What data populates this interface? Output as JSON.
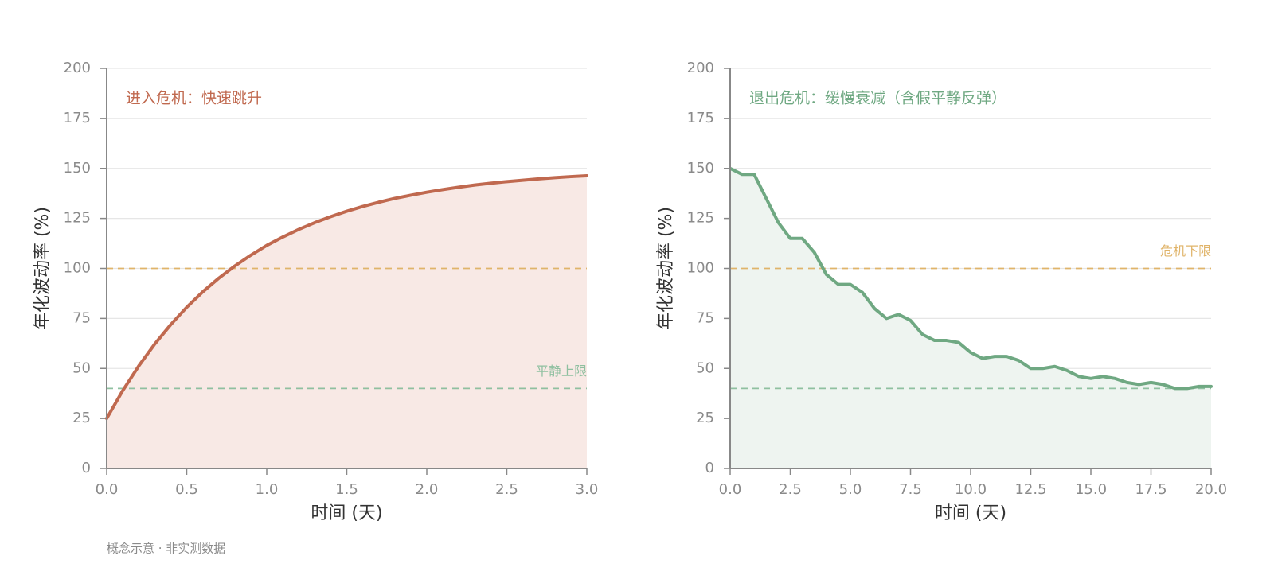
{
  "chart_data": [
    {
      "type": "area",
      "annotation": "进入危机：快速跳升",
      "xlabel": "时间 (天)",
      "ylabel": "年化波动率 (%)",
      "x": [
        0,
        0.1,
        0.2,
        0.3,
        0.4,
        0.5,
        0.6,
        0.7,
        0.8,
        0.9,
        1.0,
        1.1,
        1.2,
        1.3,
        1.4,
        1.5,
        1.6,
        1.7,
        1.8,
        1.9,
        2.0,
        2.1,
        2.2,
        2.3,
        2.4,
        2.5,
        2.6,
        2.7,
        2.8,
        2.9,
        3.0
      ],
      "values": [
        25,
        38.9,
        51.2,
        62.2,
        71.9,
        80.6,
        88.3,
        95.1,
        101.2,
        106.6,
        111.5,
        115.7,
        119.5,
        122.9,
        125.9,
        128.6,
        131.0,
        133.1,
        135.0,
        136.6,
        138.1,
        139.4,
        140.6,
        141.7,
        142.6,
        143.4,
        144.1,
        144.8,
        145.4,
        145.9,
        146.3
      ],
      "color": "#c0694f",
      "fill_color": "#f8e9e5",
      "xlim": [
        0,
        3
      ],
      "ylim": [
        0,
        200
      ],
      "xticks": [
        {
          "value": 0,
          "label": "0.0"
        },
        0.5,
        {
          "value": 1,
          "label": "1.0"
        },
        1.5,
        {
          "value": 2,
          "label": "2.0"
        },
        2.5,
        {
          "value": 3,
          "label": "3.0"
        }
      ],
      "yticks": [
        0,
        25,
        50,
        75,
        100,
        125,
        150,
        175,
        200
      ],
      "grid": true,
      "hlines": [
        {
          "value": 100,
          "color": "#e0b46a"
        },
        {
          "value": 40,
          "color": "#8fc0a0",
          "label": "平静上限"
        }
      ]
    },
    {
      "type": "area",
      "annotation": "退出危机：缓慢衰减（含假平静反弹）",
      "xlabel": "时间 (天)",
      "ylabel": "年化波动率 (%)",
      "x": [
        0,
        0.5,
        1.0,
        1.5,
        2.0,
        2.5,
        3.0,
        3.5,
        4.0,
        4.5,
        5.0,
        5.5,
        6.0,
        6.5,
        7.0,
        7.5,
        8.0,
        8.5,
        9.0,
        9.5,
        10.0,
        10.5,
        11.0,
        11.5,
        12.0,
        12.5,
        13.0,
        13.5,
        14.0,
        14.5,
        15.0,
        15.5,
        16.0,
        16.5,
        17.0,
        17.5,
        18.0,
        18.5,
        19.0,
        19.5,
        20.0
      ],
      "values": [
        150,
        147,
        147,
        135,
        123,
        115,
        115,
        108,
        97,
        92,
        92,
        88,
        80,
        75,
        77,
        74,
        67,
        64,
        64,
        63,
        58,
        55,
        56,
        56,
        54,
        50,
        50,
        51,
        49,
        46,
        45,
        46,
        45,
        43,
        42,
        43,
        42,
        40,
        40,
        41,
        41
      ],
      "color": "#6fa882",
      "fill_color": "#eef4f0",
      "xlim": [
        0,
        20
      ],
      "ylim": [
        0,
        200
      ],
      "xticks": [
        {
          "value": 0,
          "label": "0.0"
        },
        2.5,
        {
          "value": 5,
          "label": "5.0"
        },
        7.5,
        {
          "value": 10,
          "label": "10.0"
        },
        12.5,
        {
          "value": 15,
          "label": "15.0"
        },
        17.5,
        {
          "value": 20,
          "label": "20.0"
        }
      ],
      "yticks": [
        0,
        25,
        50,
        75,
        100,
        125,
        150,
        175,
        200
      ],
      "grid": true,
      "hlines": [
        {
          "value": 100,
          "color": "#e0b46a",
          "label": "危机下限"
        },
        {
          "value": 40,
          "color": "#8fc0a0"
        }
      ]
    }
  ],
  "footer": "概念示意 · 非实测数据"
}
